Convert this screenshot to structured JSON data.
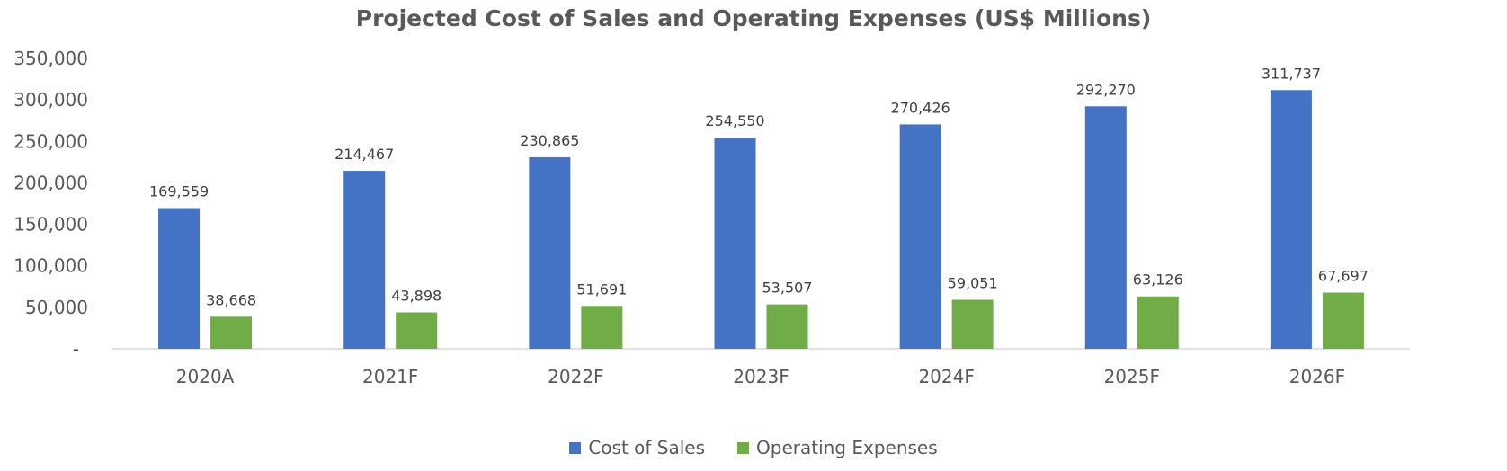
{
  "chart_data": {
    "type": "bar",
    "title": "Projected Cost of Sales and Operating Expenses (US$ Millions)",
    "categories": [
      "2020A",
      "2021F",
      "2022F",
      "2023F",
      "2024F",
      "2025F",
      "2026F"
    ],
    "series": [
      {
        "name": "Cost of Sales",
        "color": "#4472C4",
        "values": [
          169559,
          214467,
          230865,
          254550,
          270426,
          292270,
          311737
        ],
        "labels": [
          "169,559",
          "214,467",
          "230,865",
          "254,550",
          "270,426",
          "292,270",
          "311,737"
        ]
      },
      {
        "name": "Operating Expenses",
        "color": "#70AD47",
        "values": [
          38668,
          43898,
          51691,
          53507,
          59051,
          63126,
          67697
        ],
        "labels": [
          "38,668",
          "43,898",
          "51,691",
          "53,507",
          "59,051",
          "63,126",
          "67,697"
        ]
      }
    ],
    "yticks": [
      0,
      50000,
      100000,
      150000,
      200000,
      250000,
      300000,
      350000
    ],
    "ytick_labels": [
      "-",
      "50,000",
      "100,000",
      "150,000",
      "200,000",
      "250,000",
      "300,000",
      "350,000"
    ],
    "ylim": [
      0,
      350000
    ],
    "grid": false,
    "legend_position": "bottom"
  }
}
